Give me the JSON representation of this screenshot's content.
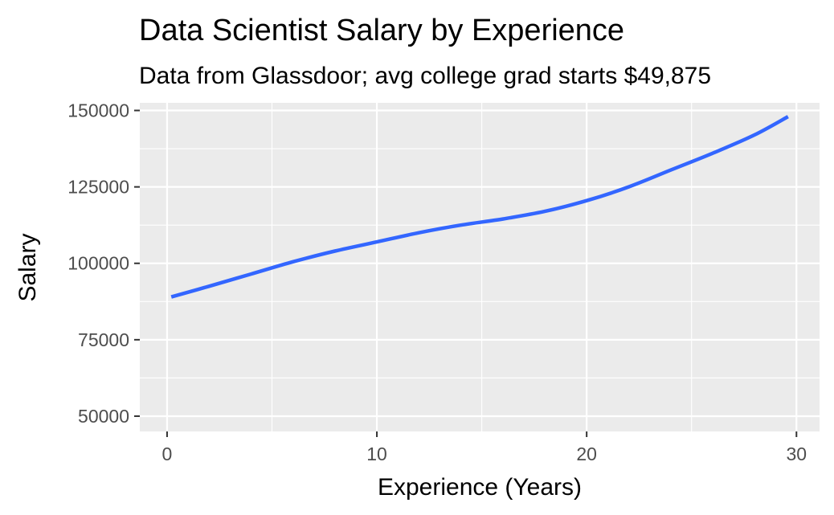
{
  "chart_data": {
    "type": "line",
    "title": "Data Scientist Salary by Experience",
    "subtitle": "Data from Glassdoor; avg college grad starts $49,875",
    "xlabel": "Experience (Years)",
    "ylabel": "Salary",
    "xlim": [
      -1.3,
      31.1
    ],
    "ylim": [
      45000,
      152500
    ],
    "x_ticks": [
      0,
      10,
      20,
      30
    ],
    "y_ticks": [
      50000,
      75000,
      100000,
      125000,
      150000
    ],
    "x_minor_ticks": [
      5,
      15,
      25
    ],
    "y_minor_ticks": [
      62500,
      87500,
      112500,
      137500
    ],
    "grid": true,
    "legend": "none",
    "colors": {
      "line": "#3366ff",
      "panel": "#ebebeb",
      "grid": "#ffffff"
    },
    "series": [
      {
        "x": [
          0.2,
          2,
          4,
          6,
          8,
          10,
          12,
          14,
          16,
          18,
          20,
          22,
          24,
          26,
          28,
          29.6
        ],
        "y": [
          89000,
          92500,
          96500,
          100500,
          104000,
          107000,
          110000,
          112500,
          114500,
          117000,
          120500,
          125000,
          130500,
          136000,
          142000,
          148000
        ]
      }
    ]
  }
}
